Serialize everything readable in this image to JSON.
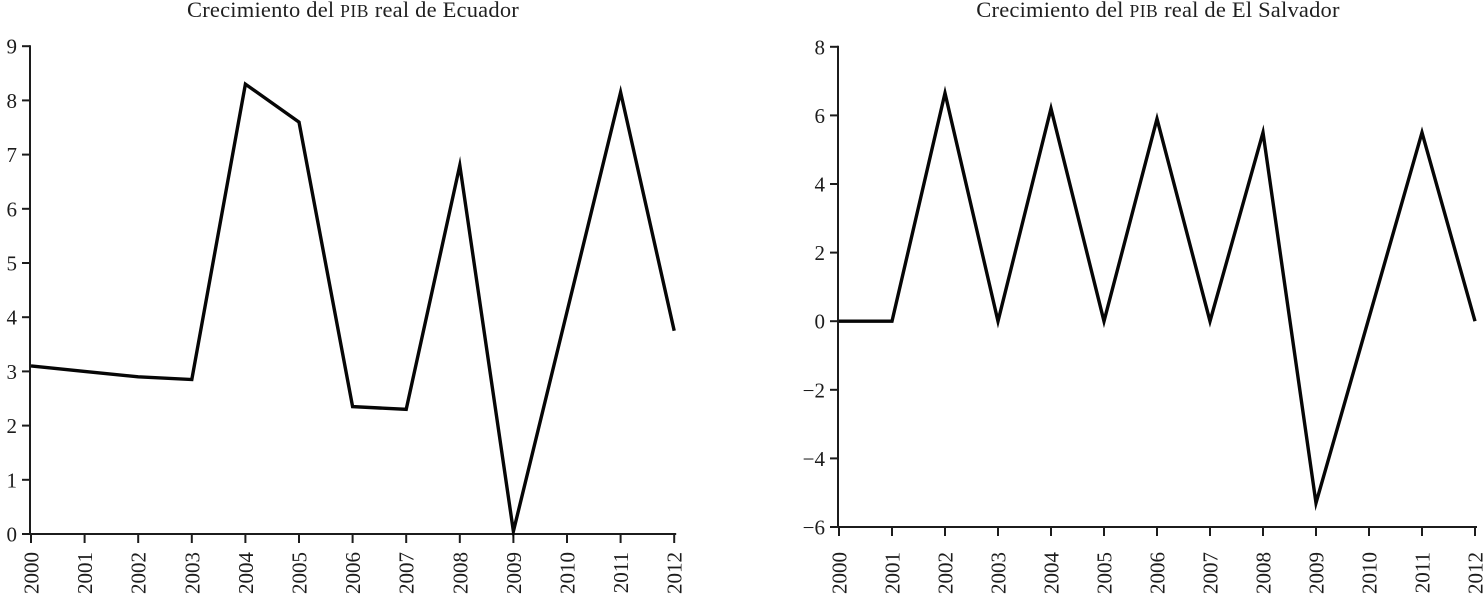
{
  "figure": {
    "background_color": "#ffffff",
    "text_color": "#1c1c1c",
    "line_color": "#060606"
  },
  "chart_data": [
    {
      "type": "line",
      "title": "Crecimiento del PIB real de Ecuador",
      "title_parts": {
        "prefix": "Crecimiento del ",
        "acronym": "PIB",
        "suffix": " real de Ecuador"
      },
      "categories": [
        "2000",
        "2001",
        "2002",
        "2003",
        "2004",
        "2005",
        "2006",
        "2007",
        "2008",
        "2009",
        "2010",
        "2011",
        "2012"
      ],
      "values": [
        3.1,
        3.0,
        2.9,
        2.85,
        8.3,
        7.6,
        2.35,
        2.3,
        6.8,
        0.05,
        4.1,
        8.15,
        3.75
      ],
      "xlabel": "",
      "ylabel": "",
      "ylim": [
        0,
        9
      ],
      "yticks": [
        0,
        1,
        2,
        3,
        4,
        5,
        6,
        7,
        8,
        9
      ],
      "ytick_labels": [
        "0",
        "1",
        "2",
        "3",
        "4",
        "5",
        "6",
        "7",
        "8",
        "9"
      ],
      "grid": false,
      "legend": "none",
      "line_color": "#060606"
    },
    {
      "type": "line",
      "title": "Crecimiento del PIB real de El Salvador",
      "title_parts": {
        "prefix": "Crecimiento del ",
        "acronym": "PIB",
        "suffix": " real de El Salvador"
      },
      "categories": [
        "2000",
        "2001",
        "2002",
        "2003",
        "2004",
        "2005",
        "2006",
        "2007",
        "2008",
        "2009",
        "2010",
        "2011",
        "2012"
      ],
      "values": [
        0,
        0,
        6.65,
        0,
        6.2,
        0,
        5.9,
        0,
        5.5,
        -5.3,
        0.1,
        5.5,
        0
      ],
      "xlabel": "",
      "ylabel": "",
      "ylim": [
        -6,
        8
      ],
      "yticks": [
        -6,
        -4,
        -2,
        0,
        2,
        4,
        6,
        8
      ],
      "ytick_labels": [
        "−6",
        "−4",
        "−2",
        "0",
        "2",
        "4",
        "6",
        "8"
      ],
      "grid": false,
      "legend": "none",
      "line_color": "#060606"
    }
  ]
}
